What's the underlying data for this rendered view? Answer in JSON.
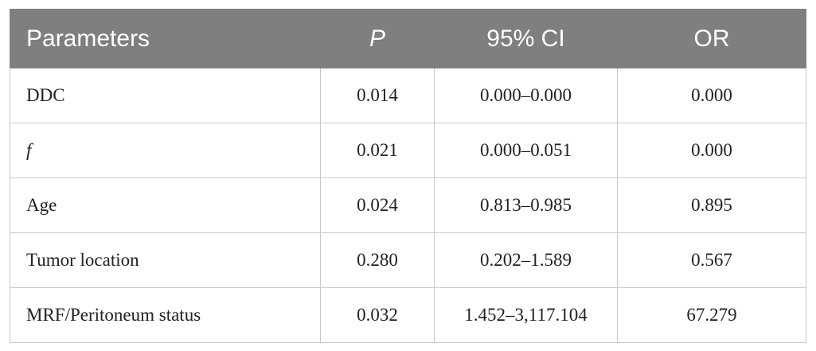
{
  "table": {
    "header": [
      "Parameters",
      "P",
      "95% CI",
      "OR"
    ],
    "rows": [
      [
        "DDC",
        "0.014",
        "0.000–0.000",
        "0.000"
      ],
      [
        "f",
        "0.021",
        "0.000–0.051",
        "0.000"
      ],
      [
        "Age",
        "0.024",
        "0.813–0.985",
        "0.895"
      ],
      [
        "Tumor location",
        "0.280",
        "0.202–1.589",
        "0.567"
      ],
      [
        "MRF/Peritoneum status",
        "0.032",
        "1.452–3,117.104",
        "67.279"
      ]
    ]
  }
}
